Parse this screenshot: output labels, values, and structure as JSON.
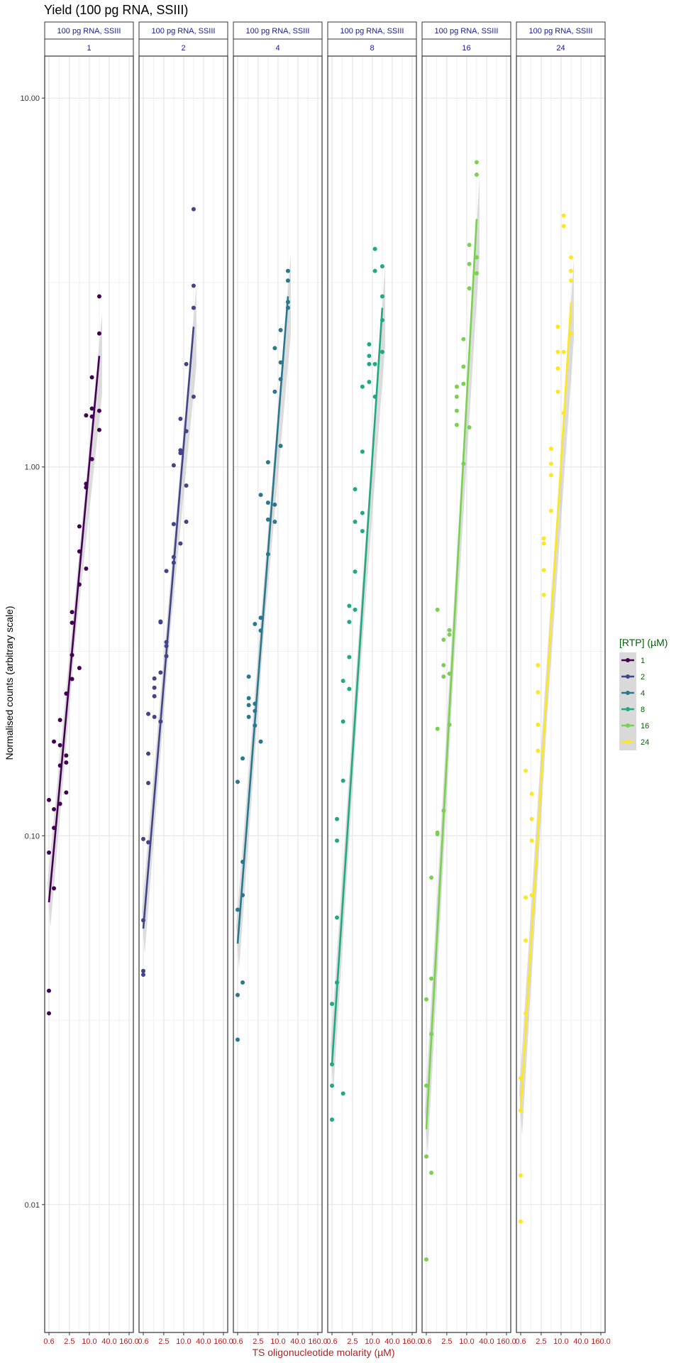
{
  "chart_data": {
    "type": "scatter",
    "title": "Yield (100 pg RNA, SSIII)",
    "xlabel": "TS oligonucleotide molarity (µM)",
    "ylabel": "Normalised counts (arbitrary scale)",
    "x_scale": "log2",
    "y_scale": "log10",
    "xlim": [
      0.6,
      160
    ],
    "ylim": [
      0.0045,
      13
    ],
    "x_ticks": [
      "0.6",
      "2.5",
      "10.0",
      "40.0",
      "160.0"
    ],
    "y_ticks": [
      "0.01",
      "0.10",
      "1.00",
      "10.00"
    ],
    "strip_top_label": "100 pg RNA, SSIII",
    "legend": {
      "title": "[RTP] (µM)",
      "position": "right",
      "entries": [
        "1",
        "2",
        "4",
        "8",
        "16",
        "24"
      ]
    },
    "grid": true,
    "smooth_band": "grey",
    "panels": [
      {
        "facet": "1",
        "color": "#440154",
        "points": [
          [
            0.6,
            0.125
          ],
          [
            0.6,
            0.09
          ],
          [
            0.6,
            0.038
          ],
          [
            0.6,
            0.033
          ],
          [
            0.85,
            0.105
          ],
          [
            0.85,
            0.072
          ],
          [
            0.85,
            0.118
          ],
          [
            0.85,
            0.18
          ],
          [
            1.3,
            0.122
          ],
          [
            1.3,
            0.155
          ],
          [
            1.3,
            0.176
          ],
          [
            1.3,
            0.206
          ],
          [
            2.0,
            0.131
          ],
          [
            2.0,
            0.158
          ],
          [
            2.0,
            0.165
          ],
          [
            2.0,
            0.243
          ],
          [
            3.0,
            0.266
          ],
          [
            3.0,
            0.309
          ],
          [
            3.0,
            0.378
          ],
          [
            3.0,
            0.404
          ],
          [
            5.0,
            0.285
          ],
          [
            5.0,
            0.48
          ],
          [
            5.0,
            0.59
          ],
          [
            5.0,
            0.69
          ],
          [
            8.0,
            0.53
          ],
          [
            8.0,
            0.88
          ],
          [
            8.0,
            0.9
          ],
          [
            8.0,
            1.38
          ],
          [
            12.0,
            1.05
          ],
          [
            12.0,
            1.37
          ],
          [
            12.0,
            1.75
          ],
          [
            12.0,
            1.44
          ],
          [
            20.0,
            1.26
          ],
          [
            20.0,
            1.42
          ],
          [
            20.0,
            2.3
          ],
          [
            20.0,
            2.9
          ]
        ],
        "fit_start": [
          0.6,
          0.066
        ],
        "fit_end": [
          20.0,
          2.0
        ]
      },
      {
        "facet": "2",
        "color": "#414487",
        "points": [
          [
            0.6,
            0.098
          ],
          [
            0.6,
            0.059
          ],
          [
            0.6,
            0.043
          ],
          [
            0.6,
            0.042
          ],
          [
            0.85,
            0.096
          ],
          [
            0.85,
            0.139
          ],
          [
            0.85,
            0.167
          ],
          [
            0.85,
            0.214
          ],
          [
            1.3,
            0.21
          ],
          [
            1.3,
            0.239
          ],
          [
            1.3,
            0.252
          ],
          [
            1.3,
            0.267
          ],
          [
            2.0,
            0.204
          ],
          [
            2.0,
            0.277
          ],
          [
            2.0,
            0.379
          ],
          [
            2.0,
            0.381
          ],
          [
            3.0,
            0.307
          ],
          [
            3.0,
            0.327
          ],
          [
            3.0,
            0.335
          ],
          [
            3.0,
            0.522
          ],
          [
            5.0,
            0.55
          ],
          [
            5.0,
            0.57
          ],
          [
            5.0,
            0.7
          ],
          [
            5.0,
            1.01
          ],
          [
            8.0,
            0.62
          ],
          [
            8.0,
            1.09
          ],
          [
            8.0,
            1.11
          ],
          [
            8.0,
            1.35
          ],
          [
            12.0,
            0.71
          ],
          [
            12.0,
            0.89
          ],
          [
            12.0,
            1.25
          ],
          [
            12.0,
            1.9
          ],
          [
            20.0,
            1.55
          ],
          [
            20.0,
            2.7
          ],
          [
            20.0,
            3.1
          ],
          [
            20.0,
            5.0
          ]
        ],
        "fit_start": [
          0.6,
          0.056
        ],
        "fit_end": [
          20.0,
          2.4
        ]
      },
      {
        "facet": "4",
        "color": "#2a788e",
        "points": [
          [
            0.6,
            0.14
          ],
          [
            0.6,
            0.063
          ],
          [
            0.6,
            0.037
          ],
          [
            0.6,
            0.028
          ],
          [
            0.85,
            0.069
          ],
          [
            0.85,
            0.085
          ],
          [
            0.85,
            0.162
          ],
          [
            0.85,
            0.04
          ],
          [
            1.3,
            0.226
          ],
          [
            1.3,
            0.236
          ],
          [
            1.3,
            0.27
          ],
          [
            1.3,
            0.21
          ],
          [
            2.0,
            0.199
          ],
          [
            2.0,
            0.218
          ],
          [
            2.0,
            0.228
          ],
          [
            2.0,
            0.375
          ],
          [
            3.0,
            0.18
          ],
          [
            3.0,
            0.36
          ],
          [
            3.0,
            0.39
          ],
          [
            3.0,
            0.84
          ],
          [
            5.0,
            0.8
          ],
          [
            5.0,
            0.58
          ],
          [
            5.0,
            0.72
          ],
          [
            5.0,
            1.03
          ],
          [
            8.0,
            0.71
          ],
          [
            8.0,
            0.79
          ],
          [
            8.0,
            1.6
          ],
          [
            8.0,
            2.1
          ],
          [
            12.0,
            1.14
          ],
          [
            12.0,
            1.73
          ],
          [
            12.0,
            1.92
          ],
          [
            12.0,
            2.35
          ],
          [
            20.0,
            2.7
          ],
          [
            20.0,
            2.8
          ],
          [
            20.0,
            3.2
          ],
          [
            20.0,
            3.4
          ]
        ],
        "fit_start": [
          0.6,
          0.051
        ],
        "fit_end": [
          20.0,
          2.9
        ]
      },
      {
        "facet": "8",
        "color": "#22a884",
        "points": [
          [
            0.6,
            0.035
          ],
          [
            0.6,
            0.024
          ],
          [
            0.6,
            0.021
          ],
          [
            0.6,
            0.017
          ],
          [
            0.85,
            0.06
          ],
          [
            0.85,
            0.04
          ],
          [
            0.85,
            0.097
          ],
          [
            0.85,
            0.111
          ],
          [
            1.3,
            0.141
          ],
          [
            1.3,
            0.204
          ],
          [
            1.3,
            0.263
          ],
          [
            1.3,
            0.02
          ],
          [
            2.0,
            0.25
          ],
          [
            2.0,
            0.305
          ],
          [
            2.0,
            0.38
          ],
          [
            2.0,
            0.42
          ],
          [
            3.0,
            0.52
          ],
          [
            3.0,
            0.71
          ],
          [
            3.0,
            0.87
          ],
          [
            3.0,
            0.41
          ],
          [
            5.0,
            0.67
          ],
          [
            5.0,
            0.75
          ],
          [
            5.0,
            1.1
          ],
          [
            5.0,
            1.65
          ],
          [
            8.0,
            1.7
          ],
          [
            8.0,
            1.9
          ],
          [
            8.0,
            2.0
          ],
          [
            8.0,
            2.15
          ],
          [
            12.0,
            1.55
          ],
          [
            12.0,
            1.9
          ],
          [
            12.0,
            3.4
          ],
          [
            12.0,
            3.9
          ],
          [
            20.0,
            2.5
          ],
          [
            20.0,
            2.9
          ],
          [
            20.0,
            3.5
          ],
          [
            20.0,
            2.05
          ]
        ],
        "fit_start": [
          0.6,
          0.024
        ],
        "fit_end": [
          20.0,
          2.7
        ]
      },
      {
        "facet": "16",
        "color": "#7ad151",
        "points": [
          [
            0.6,
            0.036
          ],
          [
            0.6,
            0.021
          ],
          [
            0.6,
            0.0135
          ],
          [
            0.6,
            0.0071
          ],
          [
            0.85,
            0.077
          ],
          [
            0.85,
            0.041
          ],
          [
            0.85,
            0.029
          ],
          [
            0.85,
            0.0122
          ],
          [
            1.3,
            0.41
          ],
          [
            1.3,
            0.195
          ],
          [
            1.3,
            0.102
          ],
          [
            1.3,
            0.101
          ],
          [
            2.0,
            0.34
          ],
          [
            2.0,
            0.27
          ],
          [
            2.0,
            0.117
          ],
          [
            2.0,
            0.29
          ],
          [
            3.0,
            0.351
          ],
          [
            3.0,
            0.361
          ],
          [
            3.0,
            0.2
          ],
          [
            3.0,
            0.275
          ],
          [
            5.0,
            1.3
          ],
          [
            5.0,
            1.42
          ],
          [
            5.0,
            1.55
          ],
          [
            5.0,
            1.65
          ],
          [
            8.0,
            1.02
          ],
          [
            8.0,
            1.68
          ],
          [
            8.0,
            1.87
          ],
          [
            8.0,
            2.22
          ],
          [
            12.0,
            1.28
          ],
          [
            12.0,
            3.05
          ],
          [
            12.0,
            3.55
          ],
          [
            12.0,
            4.0
          ],
          [
            20.0,
            3.35
          ],
          [
            20.0,
            3.7
          ],
          [
            20.0,
            6.2
          ],
          [
            20.0,
            6.7
          ]
        ],
        "fit_start": [
          0.6,
          0.016
        ],
        "fit_end": [
          20.0,
          4.7
        ]
      },
      {
        "facet": "24",
        "color": "#fde725",
        "points": [
          [
            0.6,
            0.009
          ],
          [
            0.6,
            0.012
          ],
          [
            0.6,
            0.018
          ],
          [
            0.6,
            0.022
          ],
          [
            0.85,
            0.033
          ],
          [
            0.85,
            0.052
          ],
          [
            0.85,
            0.068
          ],
          [
            0.85,
            0.15
          ],
          [
            1.3,
            0.069
          ],
          [
            1.3,
            0.097
          ],
          [
            1.3,
            0.111
          ],
          [
            1.3,
            0.13
          ],
          [
            2.0,
            0.17
          ],
          [
            2.0,
            0.2
          ],
          [
            2.0,
            0.245
          ],
          [
            2.0,
            0.29
          ],
          [
            3.0,
            0.45
          ],
          [
            3.0,
            0.525
          ],
          [
            3.0,
            0.62
          ],
          [
            3.0,
            0.64
          ],
          [
            5.0,
            0.76
          ],
          [
            5.0,
            0.95
          ],
          [
            5.0,
            1.02
          ],
          [
            5.0,
            1.12
          ],
          [
            8.0,
            1.6
          ],
          [
            8.0,
            2.4
          ],
          [
            8.0,
            2.05
          ],
          [
            8.0,
            1.85
          ],
          [
            12.0,
            2.05
          ],
          [
            12.0,
            4.5
          ],
          [
            12.0,
            4.8
          ],
          [
            12.0,
            1.4
          ],
          [
            20.0,
            2.3
          ],
          [
            20.0,
            3.2
          ],
          [
            20.0,
            3.4
          ],
          [
            20.0,
            3.7
          ]
        ],
        "fit_start": [
          0.6,
          0.018
        ],
        "fit_end": [
          20.0,
          2.8
        ]
      }
    ]
  }
}
